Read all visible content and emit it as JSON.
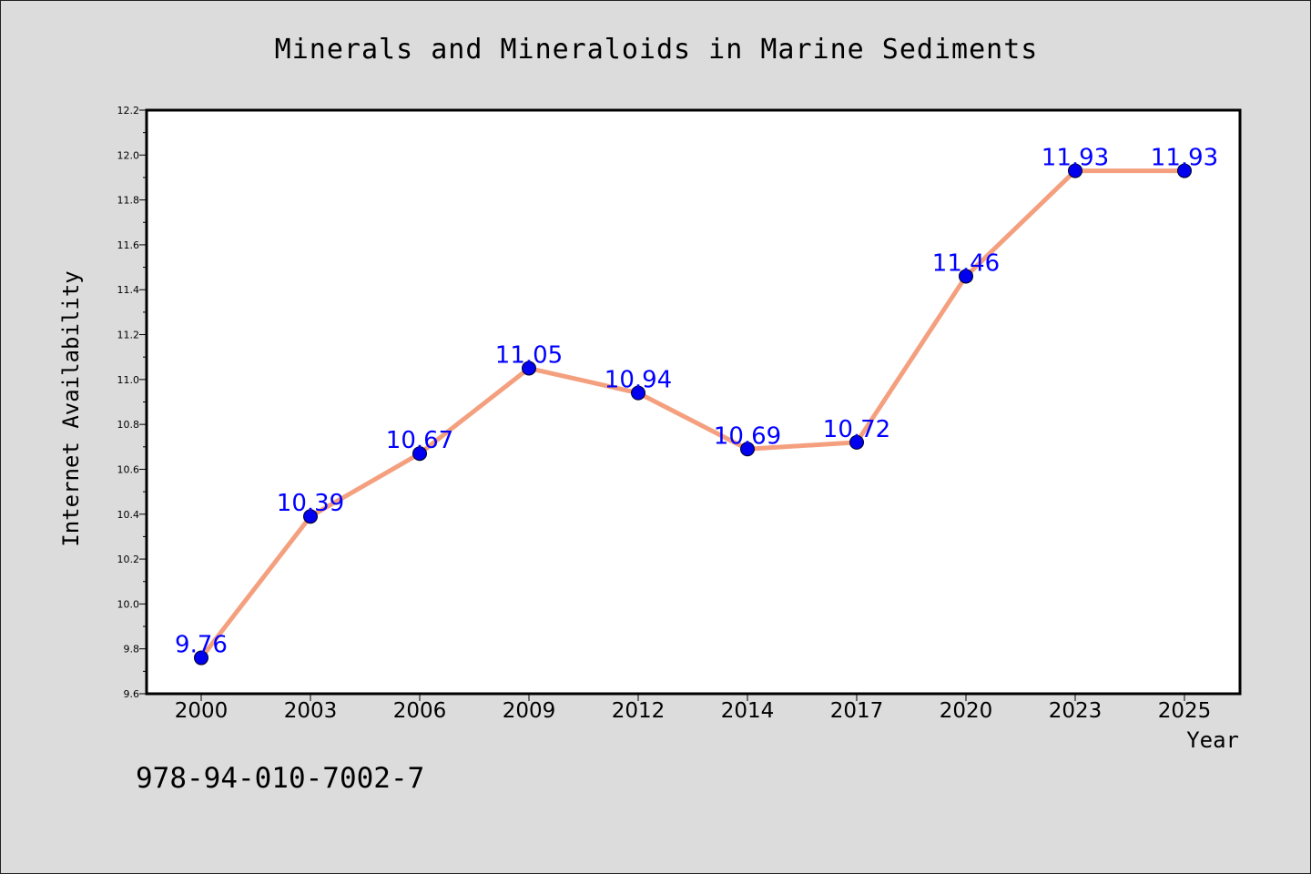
{
  "isbn_text": "978-94-010-7002-7",
  "colors": {
    "background": "#dcdcdc",
    "plot_background": "#ffffff",
    "line": "#f4a07f",
    "marker": "#0000ee",
    "data_label": "#0000ff"
  },
  "chart_data": {
    "type": "line",
    "title": "Minerals and Mineraloids in Marine Sediments",
    "xlabel": "Year",
    "ylabel": "Internet Availability",
    "categories": [
      "2000",
      "2003",
      "2006",
      "2009",
      "2012",
      "2014",
      "2017",
      "2020",
      "2023",
      "2025"
    ],
    "values": [
      9.76,
      10.39,
      10.67,
      11.05,
      10.94,
      10.69,
      10.72,
      11.46,
      11.93,
      11.93
    ],
    "data_labels": [
      "9.76",
      "10.39",
      "10.67",
      "11.05",
      "10.94",
      "10.69",
      "10.72",
      "11.46",
      "11.93",
      "11.93"
    ],
    "ylim": [
      9.6,
      12.2
    ],
    "yticks": [
      "9.6",
      "9.8",
      "10.0",
      "10.2",
      "10.4",
      "10.6",
      "10.8",
      "11.0",
      "11.2",
      "11.4",
      "11.6",
      "11.8",
      "12.0",
      "12.2"
    ],
    "grid": false,
    "legend": "none"
  }
}
